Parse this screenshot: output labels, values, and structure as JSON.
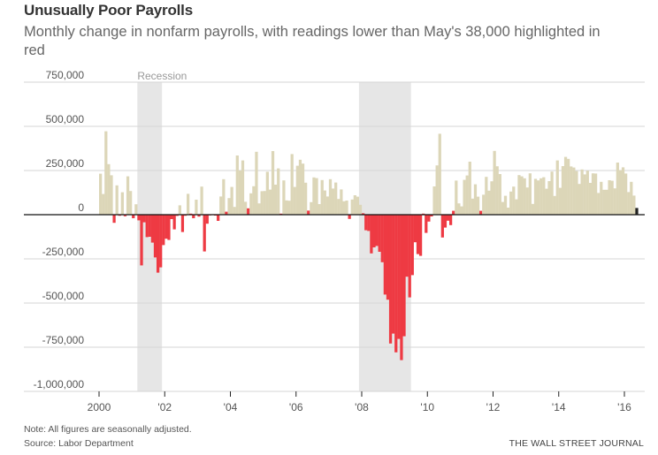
{
  "header": {
    "title": "Unusually Poor Payrolls",
    "subtitle": "Monthly change in nonfarm payrolls, with readings lower than May's 38,000 highlighted in red"
  },
  "footer": {
    "note": "Note: All figures are seasonally adjusted.",
    "source": "Source: Labor Department",
    "brand": "THE WALL STREET JOURNAL"
  },
  "colors": {
    "normal": "#dcd6b8",
    "low": "#ee3a43",
    "latest": "#222222",
    "recession": "#e6e6e6",
    "grid": "#d6d6d6"
  },
  "chart_data": {
    "type": "bar",
    "title": "Unusually Poor Payrolls",
    "subtitle": "Monthly change in nonfarm payrolls, with readings lower than May's 38,000 highlighted in red",
    "xlabel": "",
    "ylabel": "",
    "ylim": [
      -1000000,
      750000
    ],
    "xlim": [
      "2000-01",
      "2016-05"
    ],
    "threshold": 38000,
    "grid": true,
    "y_ticks": [
      750000,
      500000,
      250000,
      0,
      -250000,
      -500000,
      -750000,
      -1000000
    ],
    "y_tick_labels": [
      "750,000",
      "500,000",
      "250,000",
      "0",
      "-250,000",
      "-500,000",
      "-750,000",
      "-1,000,000"
    ],
    "x_ticks": [
      2000,
      2002,
      2004,
      2006,
      2008,
      2010,
      2012,
      2014,
      2016
    ],
    "x_tick_labels": [
      "2000",
      "'02",
      "'04",
      "'06",
      "'08",
      "'10",
      "'12",
      "'14",
      "'16"
    ],
    "recession_label": "Recession",
    "recessions": [
      [
        "2001-03",
        "2001-11"
      ],
      [
        "2007-12",
        "2009-06"
      ]
    ],
    "start": "2000-01",
    "series": [
      {
        "name": "Monthly change in nonfarm payrolls",
        "values": [
          232000,
          117000,
          472000,
          286000,
          223000,
          -46000,
          166000,
          -6000,
          127000,
          -9000,
          217000,
          134000,
          -20000,
          59000,
          -32000,
          -287000,
          -43000,
          -127000,
          -125000,
          -158000,
          -242000,
          -328000,
          -298000,
          -172000,
          -136000,
          -143000,
          -25000,
          -83000,
          -7000,
          53000,
          -98000,
          -6000,
          118000,
          6000,
          -20000,
          85000,
          -11000,
          159000,
          -208000,
          -51000,
          -3000,
          3000,
          -5000,
          -35000,
          103000,
          201000,
          17000,
          94000,
          157000,
          44000,
          335000,
          250000,
          307000,
          73000,
          36000,
          121000,
          161000,
          356000,
          64000,
          133000,
          134000,
          243000,
          142000,
          360000,
          170000,
          262000,
          6000,
          194000,
          81000,
          79000,
          343000,
          157000,
          277000,
          311000,
          289000,
          181000,
          23000,
          71000,
          211000,
          207000,
          60000,
          196000,
          137000,
          103000,
          201000,
          148000,
          182000,
          89000,
          143000,
          76000,
          80000,
          -24000,
          86000,
          110000,
          102000,
          56000,
          8000,
          -88000,
          -92000,
          -219000,
          -185000,
          -177000,
          -210000,
          -269000,
          -452000,
          -481000,
          -729000,
          -673000,
          -779000,
          -703000,
          -823000,
          -688000,
          -351000,
          -468000,
          -342000,
          -156000,
          -223000,
          -233000,
          6000,
          -103000,
          -39000,
          -10000,
          160000,
          279000,
          458000,
          -129000,
          -73000,
          -34000,
          -59000,
          22000,
          193000,
          64000,
          47000,
          197000,
          222000,
          300000,
          91000,
          172000,
          102000,
          22000,
          113000,
          214000,
          136000,
          189000,
          361000,
          274000,
          230000,
          72000,
          107000,
          40000,
          131000,
          159000,
          87000,
          224000,
          217000,
          206000,
          154000,
          234000,
          61000,
          203000,
          194000,
          206000,
          212000,
          147000,
          190000,
          244000,
          106000,
          307000,
          152000,
          275000,
          327000,
          316000,
          273000,
          267000,
          247000,
          174000,
          256000,
          228000,
          249000,
          180000,
          234000,
          233000,
          123000,
          186000,
          141000,
          141000,
          195000,
          192000,
          149000,
          295000,
          252000,
          268000,
          233000,
          128000,
          186000,
          108000,
          38000
        ]
      }
    ]
  }
}
